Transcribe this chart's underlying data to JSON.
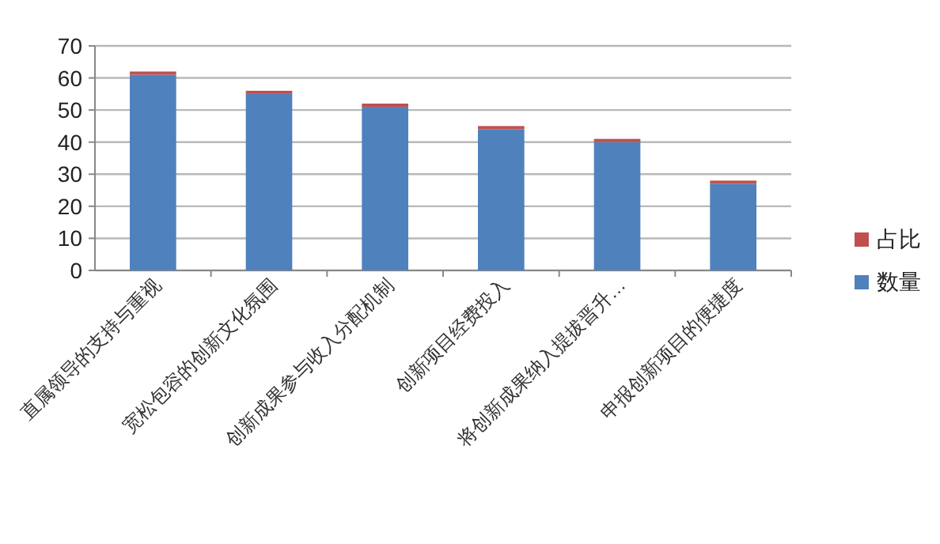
{
  "chart_data": {
    "type": "bar",
    "stacked": true,
    "categories": [
      "直属领导的支持与重视",
      "宽松包容的创新文化氛围",
      "创新成果参与收入分配机制",
      "创新项目经费投入",
      "将创新成果纳入提拔晋升…",
      "申报创新项目的便捷度"
    ],
    "series": [
      {
        "name": "数量",
        "color": "#4f81bd",
        "values": [
          61,
          55,
          51,
          44,
          40,
          27
        ]
      },
      {
        "name": "占比",
        "color": "#c0504d",
        "values": [
          1,
          1,
          1,
          1,
          1,
          1
        ]
      }
    ],
    "ylim": [
      0,
      70
    ],
    "yticks": [
      0,
      10,
      20,
      30,
      40,
      50,
      60,
      70
    ],
    "grid": "y",
    "legend": "right"
  }
}
